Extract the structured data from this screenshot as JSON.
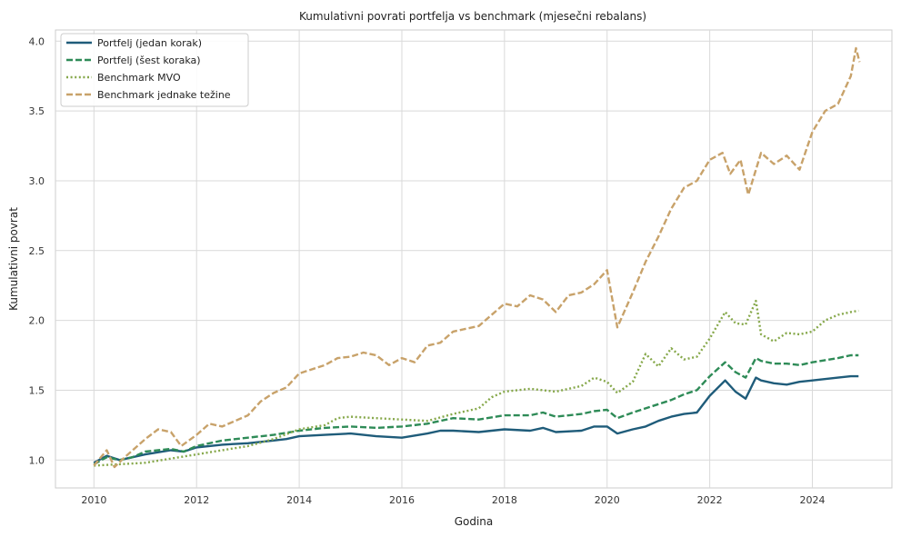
{
  "chart_data": {
    "type": "line",
    "title": "Kumulativni povrati portfelja vs benchmark (mjesečni rebalans)",
    "xlabel": "Godina",
    "ylabel": "Kumulativni povrat",
    "xlim": [
      2009.25,
      2025.55
    ],
    "ylim": [
      0.8,
      4.08
    ],
    "xticks": [
      2010,
      2012,
      2014,
      2016,
      2018,
      2020,
      2022,
      2024
    ],
    "xtick_labels": [
      "2010",
      "2012",
      "2014",
      "2016",
      "2018",
      "2020",
      "2022",
      "2024"
    ],
    "yticks": [
      1.0,
      1.5,
      2.0,
      2.5,
      3.0,
      3.5,
      4.0
    ],
    "ytick_labels": [
      "1.0",
      "1.5",
      "2.0",
      "2.5",
      "3.0",
      "3.5",
      "4.0"
    ],
    "grid": true,
    "legend_position": "top-left",
    "series": [
      {
        "name": "Portfelj (jedan korak)",
        "color": "#1f5c7a",
        "style": "solid",
        "points": [
          [
            2010.0,
            0.98
          ],
          [
            2010.25,
            1.03
          ],
          [
            2010.5,
            1.0
          ],
          [
            2010.75,
            1.02
          ],
          [
            2011.0,
            1.04
          ],
          [
            2011.5,
            1.07
          ],
          [
            2011.75,
            1.06
          ],
          [
            2012.0,
            1.09
          ],
          [
            2012.5,
            1.11
          ],
          [
            2013.0,
            1.12
          ],
          [
            2013.5,
            1.14
          ],
          [
            2013.75,
            1.15
          ],
          [
            2014.0,
            1.17
          ],
          [
            2014.5,
            1.18
          ],
          [
            2015.0,
            1.19
          ],
          [
            2015.5,
            1.17
          ],
          [
            2016.0,
            1.16
          ],
          [
            2016.5,
            1.19
          ],
          [
            2016.75,
            1.21
          ],
          [
            2017.0,
            1.21
          ],
          [
            2017.5,
            1.2
          ],
          [
            2018.0,
            1.22
          ],
          [
            2018.5,
            1.21
          ],
          [
            2018.75,
            1.23
          ],
          [
            2019.0,
            1.2
          ],
          [
            2019.5,
            1.21
          ],
          [
            2019.75,
            1.24
          ],
          [
            2020.0,
            1.24
          ],
          [
            2020.2,
            1.19
          ],
          [
            2020.5,
            1.22
          ],
          [
            2020.75,
            1.24
          ],
          [
            2021.0,
            1.28
          ],
          [
            2021.25,
            1.31
          ],
          [
            2021.5,
            1.33
          ],
          [
            2021.75,
            1.34
          ],
          [
            2022.0,
            1.46
          ],
          [
            2022.3,
            1.57
          ],
          [
            2022.5,
            1.49
          ],
          [
            2022.7,
            1.44
          ],
          [
            2022.9,
            1.59
          ],
          [
            2023.0,
            1.57
          ],
          [
            2023.25,
            1.55
          ],
          [
            2023.5,
            1.54
          ],
          [
            2023.75,
            1.56
          ],
          [
            2024.0,
            1.57
          ],
          [
            2024.5,
            1.59
          ],
          [
            2024.75,
            1.6
          ],
          [
            2024.9,
            1.6
          ]
        ]
      },
      {
        "name": "Portfelj (šest koraka)",
        "color": "#2e8b57",
        "style": "dashed",
        "points": [
          [
            2010.0,
            0.97
          ],
          [
            2010.25,
            1.02
          ],
          [
            2010.5,
            1.0
          ],
          [
            2010.75,
            1.02
          ],
          [
            2011.0,
            1.06
          ],
          [
            2011.5,
            1.08
          ],
          [
            2011.75,
            1.06
          ],
          [
            2012.0,
            1.1
          ],
          [
            2012.5,
            1.14
          ],
          [
            2013.0,
            1.16
          ],
          [
            2013.5,
            1.18
          ],
          [
            2014.0,
            1.21
          ],
          [
            2014.5,
            1.23
          ],
          [
            2015.0,
            1.24
          ],
          [
            2015.5,
            1.23
          ],
          [
            2016.0,
            1.24
          ],
          [
            2016.5,
            1.26
          ],
          [
            2016.75,
            1.28
          ],
          [
            2017.0,
            1.3
          ],
          [
            2017.5,
            1.29
          ],
          [
            2018.0,
            1.32
          ],
          [
            2018.5,
            1.32
          ],
          [
            2018.75,
            1.34
          ],
          [
            2019.0,
            1.31
          ],
          [
            2019.5,
            1.33
          ],
          [
            2019.75,
            1.35
          ],
          [
            2020.0,
            1.36
          ],
          [
            2020.2,
            1.3
          ],
          [
            2020.5,
            1.34
          ],
          [
            2020.75,
            1.37
          ],
          [
            2021.0,
            1.4
          ],
          [
            2021.25,
            1.43
          ],
          [
            2021.5,
            1.47
          ],
          [
            2021.75,
            1.5
          ],
          [
            2022.0,
            1.6
          ],
          [
            2022.3,
            1.7
          ],
          [
            2022.5,
            1.63
          ],
          [
            2022.7,
            1.59
          ],
          [
            2022.9,
            1.73
          ],
          [
            2023.0,
            1.71
          ],
          [
            2023.25,
            1.69
          ],
          [
            2023.5,
            1.69
          ],
          [
            2023.75,
            1.68
          ],
          [
            2024.0,
            1.7
          ],
          [
            2024.5,
            1.73
          ],
          [
            2024.75,
            1.75
          ],
          [
            2024.9,
            1.75
          ]
        ]
      },
      {
        "name": "Benchmark MVO",
        "color": "#86a84a",
        "style": "dotted",
        "points": [
          [
            2010.0,
            0.96
          ],
          [
            2010.5,
            0.97
          ],
          [
            2011.0,
            0.98
          ],
          [
            2011.5,
            1.01
          ],
          [
            2012.0,
            1.04
          ],
          [
            2012.5,
            1.07
          ],
          [
            2013.0,
            1.1
          ],
          [
            2013.5,
            1.15
          ],
          [
            2014.0,
            1.22
          ],
          [
            2014.5,
            1.25
          ],
          [
            2014.75,
            1.3
          ],
          [
            2015.0,
            1.31
          ],
          [
            2015.5,
            1.3
          ],
          [
            2016.0,
            1.29
          ],
          [
            2016.5,
            1.28
          ],
          [
            2017.0,
            1.33
          ],
          [
            2017.5,
            1.37
          ],
          [
            2017.75,
            1.45
          ],
          [
            2018.0,
            1.49
          ],
          [
            2018.5,
            1.51
          ],
          [
            2019.0,
            1.49
          ],
          [
            2019.25,
            1.51
          ],
          [
            2019.5,
            1.53
          ],
          [
            2019.75,
            1.59
          ],
          [
            2020.0,
            1.56
          ],
          [
            2020.2,
            1.48
          ],
          [
            2020.5,
            1.56
          ],
          [
            2020.75,
            1.76
          ],
          [
            2021.0,
            1.67
          ],
          [
            2021.25,
            1.8
          ],
          [
            2021.5,
            1.72
          ],
          [
            2021.75,
            1.74
          ],
          [
            2022.0,
            1.87
          ],
          [
            2022.3,
            2.06
          ],
          [
            2022.5,
            1.98
          ],
          [
            2022.7,
            1.97
          ],
          [
            2022.9,
            2.14
          ],
          [
            2023.0,
            1.9
          ],
          [
            2023.25,
            1.85
          ],
          [
            2023.5,
            1.91
          ],
          [
            2023.75,
            1.9
          ],
          [
            2024.0,
            1.92
          ],
          [
            2024.25,
            2.0
          ],
          [
            2024.5,
            2.04
          ],
          [
            2024.75,
            2.06
          ],
          [
            2024.9,
            2.07
          ]
        ]
      },
      {
        "name": "Benchmark jednake težine",
        "color": "#c8a26a",
        "style": "dashed",
        "points": [
          [
            2010.0,
            0.96
          ],
          [
            2010.25,
            1.07
          ],
          [
            2010.4,
            0.95
          ],
          [
            2010.6,
            1.02
          ],
          [
            2011.0,
            1.15
          ],
          [
            2011.25,
            1.22
          ],
          [
            2011.5,
            1.2
          ],
          [
            2011.7,
            1.1
          ],
          [
            2012.0,
            1.18
          ],
          [
            2012.25,
            1.26
          ],
          [
            2012.5,
            1.24
          ],
          [
            2013.0,
            1.32
          ],
          [
            2013.25,
            1.42
          ],
          [
            2013.5,
            1.48
          ],
          [
            2013.75,
            1.52
          ],
          [
            2014.0,
            1.62
          ],
          [
            2014.5,
            1.68
          ],
          [
            2014.75,
            1.73
          ],
          [
            2015.0,
            1.74
          ],
          [
            2015.25,
            1.77
          ],
          [
            2015.5,
            1.75
          ],
          [
            2015.75,
            1.68
          ],
          [
            2016.0,
            1.73
          ],
          [
            2016.25,
            1.7
          ],
          [
            2016.5,
            1.82
          ],
          [
            2016.75,
            1.84
          ],
          [
            2017.0,
            1.92
          ],
          [
            2017.5,
            1.96
          ],
          [
            2018.0,
            2.12
          ],
          [
            2018.25,
            2.1
          ],
          [
            2018.5,
            2.18
          ],
          [
            2018.75,
            2.15
          ],
          [
            2019.0,
            2.06
          ],
          [
            2019.25,
            2.18
          ],
          [
            2019.5,
            2.2
          ],
          [
            2019.75,
            2.26
          ],
          [
            2020.0,
            2.36
          ],
          [
            2020.2,
            1.95
          ],
          [
            2020.5,
            2.2
          ],
          [
            2020.75,
            2.42
          ],
          [
            2021.0,
            2.6
          ],
          [
            2021.25,
            2.8
          ],
          [
            2021.5,
            2.95
          ],
          [
            2021.75,
            3.0
          ],
          [
            2022.0,
            3.15
          ],
          [
            2022.25,
            3.2
          ],
          [
            2022.4,
            3.05
          ],
          [
            2022.6,
            3.15
          ],
          [
            2022.75,
            2.9
          ],
          [
            2023.0,
            3.2
          ],
          [
            2023.25,
            3.12
          ],
          [
            2023.5,
            3.18
          ],
          [
            2023.75,
            3.08
          ],
          [
            2024.0,
            3.35
          ],
          [
            2024.25,
            3.5
          ],
          [
            2024.5,
            3.55
          ],
          [
            2024.75,
            3.75
          ],
          [
            2024.85,
            3.95
          ],
          [
            2024.92,
            3.85
          ]
        ]
      }
    ]
  }
}
